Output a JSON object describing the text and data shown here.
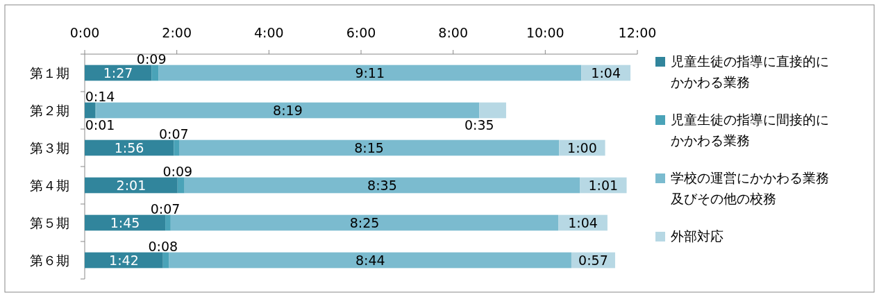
{
  "chart_data": {
    "type": "bar",
    "orientation": "horizontal",
    "stacked": true,
    "legend": "right",
    "categories": [
      "第１期",
      "第２期",
      "第３期",
      "第４期",
      "第５期",
      "第６期"
    ],
    "xlim": [
      0,
      12
    ],
    "xticks": [
      {
        "value": 0,
        "label": "0:00"
      },
      {
        "value": 2,
        "label": "2:00"
      },
      {
        "value": 4,
        "label": "4:00"
      },
      {
        "value": 6,
        "label": "6:00"
      },
      {
        "value": 8,
        "label": "8:00"
      },
      {
        "value": 10,
        "label": "10:00"
      },
      {
        "value": 12,
        "label": "12:00"
      }
    ],
    "series": [
      {
        "name": "児童生徒の指導に直接的にかかわる業務",
        "color": "#31859c",
        "values": [
          1.45,
          0.2333,
          1.9333,
          2.0167,
          1.75,
          1.7
        ],
        "value_labels": [
          "1:27",
          "0:14",
          "1:56",
          "2:01",
          "1:45",
          "1:42"
        ]
      },
      {
        "name": "児童生徒の指導に間接的にかかわる業務",
        "color": "#4aa3b8",
        "values": [
          0.15,
          0.0167,
          0.1167,
          0.15,
          0.1167,
          0.1333
        ],
        "value_labels": [
          "0:09",
          "0:01",
          "0:07",
          "0:09",
          "0:07",
          "0:08"
        ]
      },
      {
        "name": "学校の運営にかかわる業務及びその他の校務",
        "color": "#7bbbcf",
        "values": [
          9.1833,
          8.3167,
          8.25,
          8.5833,
          8.4167,
          8.7333
        ],
        "value_labels": [
          "9:11",
          "8:19",
          "8:15",
          "8:35",
          "8:25",
          "8:44"
        ]
      },
      {
        "name": "外部対応",
        "color": "#b7d8e4",
        "values": [
          1.0667,
          0.5833,
          1.0,
          1.0167,
          1.0667,
          0.95
        ],
        "value_labels": [
          "1:04",
          "0:35",
          "1:00",
          "1:01",
          "1:04",
          "0:57"
        ]
      }
    ]
  }
}
